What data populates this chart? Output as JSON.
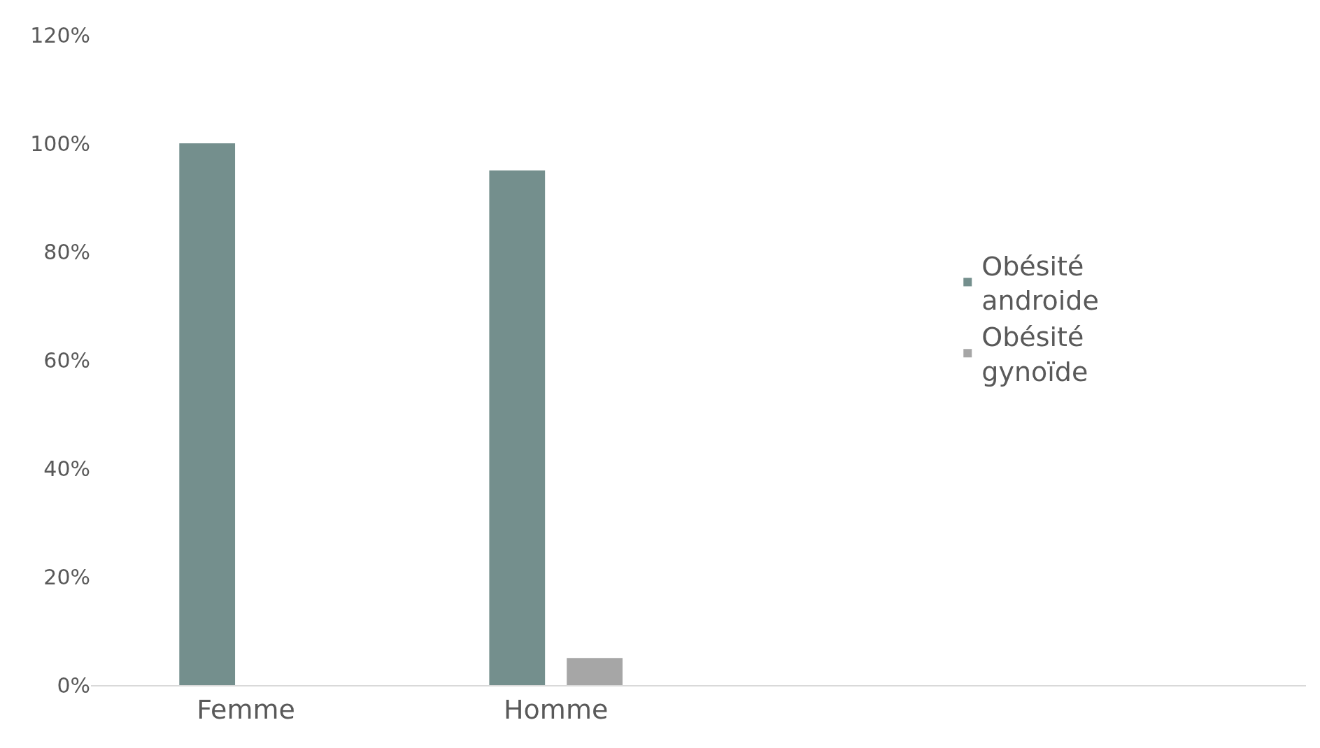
{
  "chart_data": {
    "type": "bar",
    "categories": [
      "Femme",
      "Homme"
    ],
    "series": [
      {
        "name": "Obésité androide",
        "color": "#748f8d",
        "values": [
          100,
          95
        ]
      },
      {
        "name": "Obésité gynoïde",
        "color": "#a6a6a6",
        "values": [
          0,
          5
        ]
      }
    ],
    "ylim": [
      0,
      120
    ],
    "yticks": [
      {
        "value": 0,
        "label": "0%"
      },
      {
        "value": 20,
        "label": "20%"
      },
      {
        "value": 40,
        "label": "40%"
      },
      {
        "value": 60,
        "label": "60%"
      },
      {
        "value": 80,
        "label": "80%"
      },
      {
        "value": 100,
        "label": "100%"
      },
      {
        "value": 120,
        "label": "120%"
      }
    ],
    "grid": false,
    "legend": "right"
  }
}
